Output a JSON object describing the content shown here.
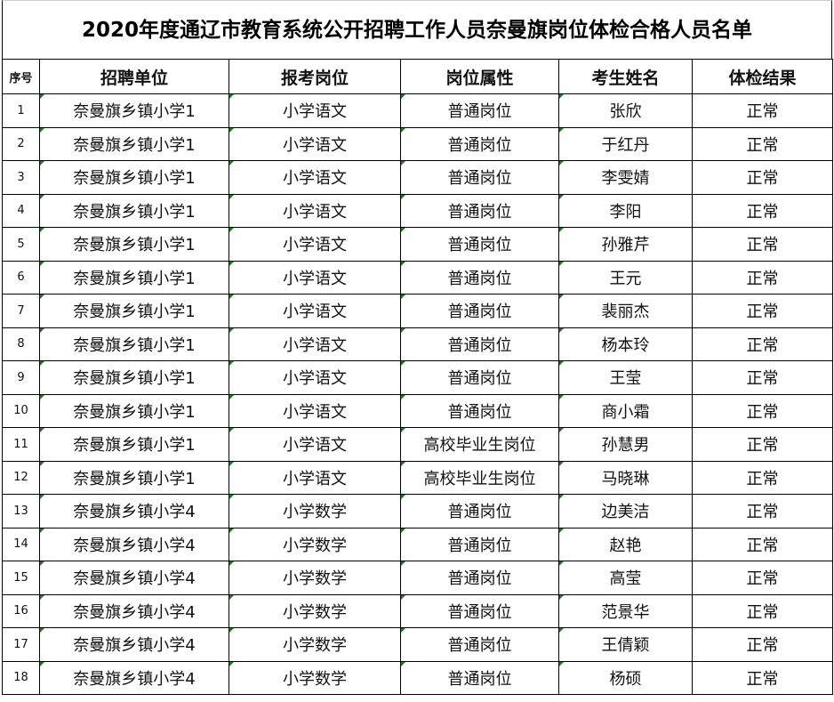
{
  "title": "2020年度通辽市教育系统公开招聘工作人员奈曼旗岗位体检合格人员名单",
  "headers": [
    "序号",
    "招聘单位",
    "报考岗位",
    "岗位属性",
    "考生姓名",
    "体检结果"
  ],
  "rows": [
    [
      "1",
      "奈曼旗乡镇小学1",
      "小学语文",
      "普通岗位",
      "张欣",
      "正常"
    ],
    [
      "2",
      "奈曼旗乡镇小学1",
      "小学语文",
      "普通岗位",
      "于红丹",
      "正常"
    ],
    [
      "3",
      "奈曼旗乡镇小学1",
      "小学语文",
      "普通岗位",
      "李雯婧",
      "正常"
    ],
    [
      "4",
      "奈曼旗乡镇小学1",
      "小学语文",
      "普通岗位",
      "李阳",
      "正常"
    ],
    [
      "5",
      "奈曼旗乡镇小学1",
      "小学语文",
      "普通岗位",
      "孙雅芹",
      "正常"
    ],
    [
      "6",
      "奈曼旗乡镇小学1",
      "小学语文",
      "普通岗位",
      "王元",
      "正常"
    ],
    [
      "7",
      "奈曼旗乡镇小学1",
      "小学语文",
      "普通岗位",
      "裴丽杰",
      "正常"
    ],
    [
      "8",
      "奈曼旗乡镇小学1",
      "小学语文",
      "普通岗位",
      "杨本玲",
      "正常"
    ],
    [
      "9",
      "奈曼旗乡镇小学1",
      "小学语文",
      "普通岗位",
      "王莹",
      "正常"
    ],
    [
      "10",
      "奈曼旗乡镇小学1",
      "小学语文",
      "普通岗位",
      "商小霜",
      "正常"
    ],
    [
      "11",
      "奈曼旗乡镇小学1",
      "小学语文",
      "高校毕业生岗位",
      "孙慧男",
      "正常"
    ],
    [
      "12",
      "奈曼旗乡镇小学1",
      "小学语文",
      "高校毕业生岗位",
      "马晓琳",
      "正常"
    ],
    [
      "13",
      "奈曼旗乡镇小学4",
      "小学数学",
      "普通岗位",
      "边美洁",
      "正常"
    ],
    [
      "14",
      "奈曼旗乡镇小学4",
      "小学数学",
      "普通岗位",
      "赵艳",
      "正常"
    ],
    [
      "15",
      "奈曼旗乡镇小学4",
      "小学数学",
      "普通岗位",
      "高莹",
      "正常"
    ],
    [
      "16",
      "奈曼旗乡镇小学4",
      "小学数学",
      "普通岗位",
      "范景华",
      "正常"
    ],
    [
      "17",
      "奈曼旗乡镇小学4",
      "小学数学",
      "普通岗位",
      "王倩颖",
      "正常"
    ],
    [
      "18",
      "奈曼旗乡镇小学4",
      "小学数学",
      "普通岗位",
      "杨硕",
      "正常"
    ]
  ],
  "colors": {
    "border": "#000000",
    "error_indicator": "#1a7a1a"
  }
}
